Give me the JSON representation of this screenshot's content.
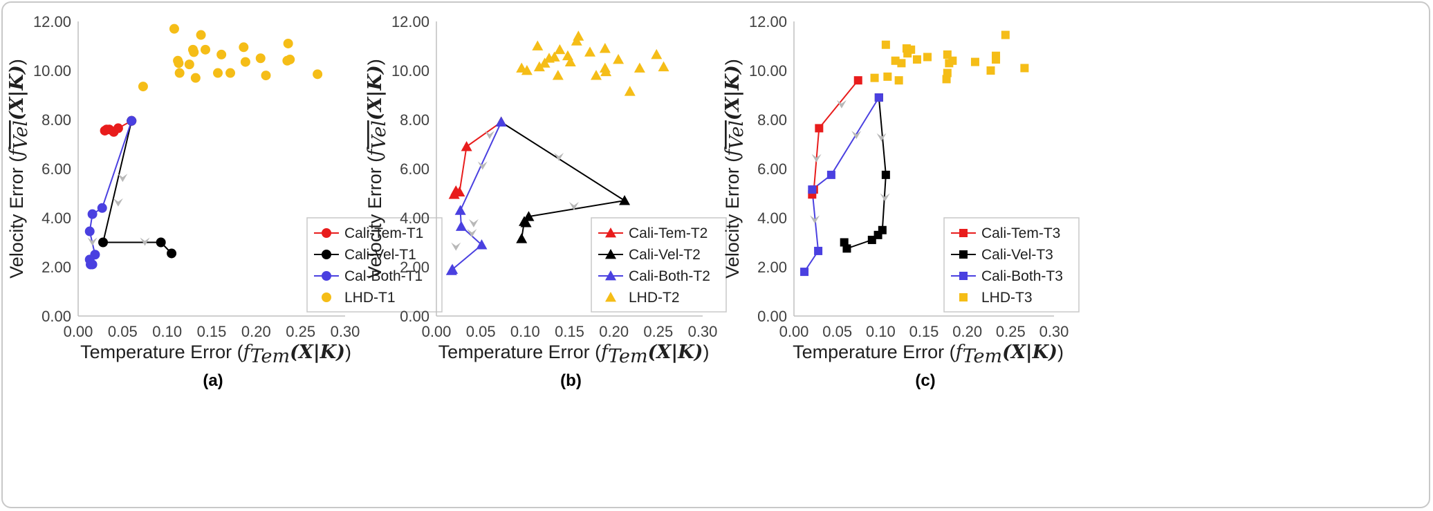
{
  "chart_data": [
    {
      "type": "scatter",
      "panel_label": "(a)",
      "xlabel_text": "Temperature Error (",
      "ylabel_text": "Velocity Error (",
      "xlim": [
        0,
        0.3
      ],
      "ylim": [
        0,
        12
      ],
      "xticks": [
        "0.00",
        "0.05",
        "0.10",
        "0.15",
        "0.20",
        "0.25",
        "0.30"
      ],
      "yticks": [
        "0.00",
        "2.00",
        "4.00",
        "6.00",
        "8.00",
        "10.00",
        "12.00"
      ],
      "legend_position": "bottom-right",
      "series": [
        {
          "name": "Cali-Tem-T1",
          "color": "#e81c1c",
          "marker": "circle",
          "line": true,
          "points": [
            [
              0.06,
              7.95
            ],
            [
              0.045,
              7.65
            ],
            [
              0.04,
              7.5
            ],
            [
              0.035,
              7.6
            ],
            [
              0.032,
              7.6
            ],
            [
              0.03,
              7.55
            ]
          ]
        },
        {
          "name": "Cali-Vel-T1",
          "color": "#000000",
          "marker": "circle",
          "line": true,
          "points": [
            [
              0.06,
              7.95
            ],
            [
              0.028,
              3.0
            ],
            [
              0.093,
              3.0
            ],
            [
              0.105,
              2.55
            ]
          ]
        },
        {
          "name": "Cal-Both-T1",
          "color": "#4a40e0",
          "marker": "circle",
          "line": true,
          "points": [
            [
              0.06,
              7.95
            ],
            [
              0.027,
              4.4
            ],
            [
              0.016,
              4.15
            ],
            [
              0.013,
              3.45
            ],
            [
              0.019,
              2.5
            ],
            [
              0.013,
              2.3
            ],
            [
              0.014,
              2.1
            ],
            [
              0.016,
              2.1
            ]
          ]
        },
        {
          "name": "LHD-T1",
          "color": "#f5bd17",
          "marker": "circle",
          "line": false,
          "points": [
            [
              0.108,
              11.7
            ],
            [
              0.138,
              11.45
            ],
            [
              0.236,
              11.1
            ],
            [
              0.186,
              10.95
            ],
            [
              0.143,
              10.85
            ],
            [
              0.129,
              10.85
            ],
            [
              0.13,
              10.75
            ],
            [
              0.161,
              10.65
            ],
            [
              0.205,
              10.5
            ],
            [
              0.235,
              10.4
            ],
            [
              0.238,
              10.45
            ],
            [
              0.112,
              10.4
            ],
            [
              0.113,
              10.3
            ],
            [
              0.125,
              10.25
            ],
            [
              0.188,
              10.35
            ],
            [
              0.114,
              9.9
            ],
            [
              0.132,
              9.7
            ],
            [
              0.157,
              9.9
            ],
            [
              0.171,
              9.9
            ],
            [
              0.211,
              9.8
            ],
            [
              0.269,
              9.85
            ],
            [
              0.073,
              9.35
            ]
          ]
        }
      ],
      "arrows": [
        [
          0.05,
          5.6
        ],
        [
          0.045,
          4.6
        ],
        [
          0.016,
          3.0
        ],
        [
          0.075,
          3.0
        ]
      ]
    },
    {
      "type": "scatter",
      "panel_label": "(b)",
      "xlabel_text": "Temperature Error (",
      "ylabel_text": "Velocity Error (",
      "xlim": [
        0,
        0.3
      ],
      "ylim": [
        0,
        12
      ],
      "xticks": [
        "0.00",
        "0.05",
        "0.10",
        "0.15",
        "0.20",
        "0.25",
        "0.30"
      ],
      "yticks": [
        "0.00",
        "2.00",
        "4.00",
        "6.00",
        "8.00",
        "10.00",
        "12.00"
      ],
      "legend_position": "bottom-right",
      "series": [
        {
          "name": "Cali-Tem-T2",
          "color": "#e81c1c",
          "marker": "triangle",
          "line": true,
          "points": [
            [
              0.073,
              7.9
            ],
            [
              0.034,
              6.9
            ],
            [
              0.026,
              5.05
            ],
            [
              0.022,
              5.1
            ],
            [
              0.02,
              4.95
            ]
          ]
        },
        {
          "name": "Cali-Vel-T2",
          "color": "#000000",
          "marker": "triangle",
          "line": true,
          "points": [
            [
              0.073,
              7.9
            ],
            [
              0.212,
              4.7
            ],
            [
              0.104,
              4.05
            ],
            [
              0.101,
              3.8
            ],
            [
              0.099,
              3.85
            ],
            [
              0.096,
              3.15
            ]
          ]
        },
        {
          "name": "Cali-Both-T2",
          "color": "#4a40e0",
          "marker": "triangle",
          "line": true,
          "points": [
            [
              0.073,
              7.9
            ],
            [
              0.027,
              4.3
            ],
            [
              0.028,
              3.65
            ],
            [
              0.051,
              2.9
            ],
            [
              0.018,
              1.9
            ],
            [
              0.017,
              1.85
            ]
          ]
        },
        {
          "name": "LHD-T2",
          "color": "#f5bd17",
          "marker": "triangle",
          "line": false,
          "points": [
            [
              0.16,
              11.4
            ],
            [
              0.114,
              11.0
            ],
            [
              0.158,
              11.2
            ],
            [
              0.19,
              10.9
            ],
            [
              0.139,
              10.85
            ],
            [
              0.148,
              10.6
            ],
            [
              0.133,
              10.55
            ],
            [
              0.127,
              10.5
            ],
            [
              0.248,
              10.65
            ],
            [
              0.173,
              10.75
            ],
            [
              0.205,
              10.45
            ],
            [
              0.151,
              10.35
            ],
            [
              0.122,
              10.3
            ],
            [
              0.116,
              10.15
            ],
            [
              0.096,
              10.1
            ],
            [
              0.102,
              10.0
            ],
            [
              0.19,
              10.1
            ],
            [
              0.229,
              10.1
            ],
            [
              0.256,
              10.15
            ],
            [
              0.191,
              9.95
            ],
            [
              0.137,
              9.8
            ],
            [
              0.18,
              9.8
            ],
            [
              0.218,
              9.15
            ]
          ]
        }
      ],
      "arrows": [
        [
          0.06,
          7.35
        ],
        [
          0.138,
          6.45
        ],
        [
          0.155,
          4.45
        ],
        [
          0.052,
          6.1
        ],
        [
          0.04,
          3.35
        ],
        [
          0.022,
          2.8
        ],
        [
          0.042,
          3.75
        ]
      ]
    },
    {
      "type": "scatter",
      "panel_label": "(c)",
      "xlabel_text": "Temperature Error (",
      "ylabel_text": "Velocity Error (",
      "xlim": [
        0,
        0.3
      ],
      "ylim": [
        0,
        12
      ],
      "xticks": [
        "0.00",
        "0.05",
        "0.10",
        "0.15",
        "0.20",
        "0.25",
        "0.30"
      ],
      "yticks": [
        "0.00",
        "2.00",
        "4.00",
        "6.00",
        "8.00",
        "10.00",
        "12.00"
      ],
      "legend_position": "bottom-right",
      "series": [
        {
          "name": "Cali-Tem-T3",
          "color": "#e81c1c",
          "marker": "square",
          "line": true,
          "points": [
            [
              0.074,
              9.6
            ],
            [
              0.029,
              7.65
            ],
            [
              0.023,
              5.15
            ],
            [
              0.021,
              4.95
            ]
          ]
        },
        {
          "name": "Cali-Vel-T3",
          "color": "#000000",
          "marker": "square",
          "line": true,
          "points": [
            [
              0.098,
              8.9
            ],
            [
              0.106,
              5.75
            ],
            [
              0.102,
              3.5
            ],
            [
              0.097,
              3.3
            ],
            [
              0.09,
              3.1
            ],
            [
              0.061,
              2.75
            ],
            [
              0.058,
              3.0
            ]
          ]
        },
        {
          "name": "Cali-Both-T3",
          "color": "#4a40e0",
          "marker": "square",
          "line": true,
          "points": [
            [
              0.098,
              8.9
            ],
            [
              0.043,
              5.75
            ],
            [
              0.021,
              5.15
            ],
            [
              0.028,
              2.65
            ],
            [
              0.012,
              1.8
            ]
          ]
        },
        {
          "name": "LHD-T3",
          "color": "#f5bd17",
          "marker": "square",
          "line": false,
          "points": [
            [
              0.244,
              11.45
            ],
            [
              0.106,
              11.05
            ],
            [
              0.13,
              10.9
            ],
            [
              0.135,
              10.85
            ],
            [
              0.131,
              10.7
            ],
            [
              0.154,
              10.55
            ],
            [
              0.177,
              10.65
            ],
            [
              0.142,
              10.45
            ],
            [
              0.117,
              10.4
            ],
            [
              0.124,
              10.3
            ],
            [
              0.183,
              10.4
            ],
            [
              0.179,
              10.3
            ],
            [
              0.209,
              10.35
            ],
            [
              0.233,
              10.6
            ],
            [
              0.233,
              10.45
            ],
            [
              0.266,
              10.1
            ],
            [
              0.227,
              10.0
            ],
            [
              0.108,
              9.75
            ],
            [
              0.121,
              9.6
            ],
            [
              0.093,
              9.7
            ],
            [
              0.177,
              9.9
            ],
            [
              0.176,
              9.65
            ]
          ]
        }
      ],
      "arrows": [
        [
          0.055,
          8.6
        ],
        [
          0.026,
          6.4
        ],
        [
          0.024,
          3.9
        ],
        [
          0.072,
          7.35
        ],
        [
          0.101,
          7.25
        ],
        [
          0.105,
          4.8
        ]
      ]
    }
  ]
}
